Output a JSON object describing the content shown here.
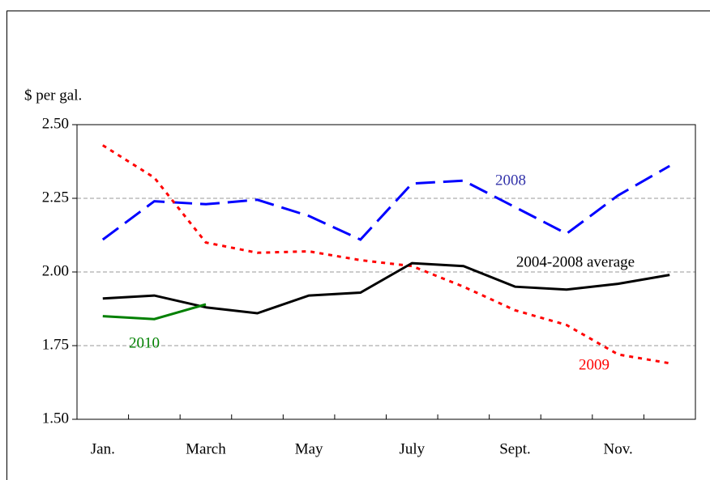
{
  "chart_data": {
    "type": "line",
    "y_label": "$ per gal.",
    "categories": [
      "Jan.",
      null,
      "March",
      null,
      "May",
      null,
      "July",
      null,
      "Sept.",
      null,
      "Nov.",
      null
    ],
    "series": [
      {
        "name": "2008",
        "color": "#0000ff",
        "label_color": "#3333aa",
        "style": "dashed",
        "values": [
          2.11,
          2.24,
          2.23,
          2.245,
          2.19,
          2.11,
          2.3,
          2.31,
          2.22,
          2.13,
          2.26,
          2.36
        ]
      },
      {
        "name": "2009",
        "color": "#ff0000",
        "label_color": "#ff0000",
        "style": "dotted",
        "values": [
          2.43,
          2.32,
          2.1,
          2.065,
          2.07,
          2.04,
          2.02,
          1.95,
          1.87,
          1.82,
          1.72,
          1.69
        ]
      },
      {
        "name": "2004-2008 average",
        "color": "#000000",
        "label_color": "#000000",
        "style": "solid",
        "values": [
          1.91,
          1.92,
          1.88,
          1.86,
          1.92,
          1.93,
          2.03,
          2.02,
          1.95,
          1.94,
          1.96,
          1.99
        ]
      },
      {
        "name": "2010",
        "color": "#008000",
        "label_color": "#008000",
        "style": "solid",
        "values": [
          1.85,
          1.84,
          1.89,
          null,
          null,
          null,
          null,
          null,
          null,
          null,
          null,
          null
        ]
      }
    ],
    "ylim": [
      1.5,
      2.5
    ],
    "yticks": [
      {
        "value": 1.5,
        "label": "1.50"
      },
      {
        "value": 1.75,
        "label": "1.75"
      },
      {
        "value": 2,
        "label": "2.00"
      },
      {
        "value": 2.25,
        "label": "2.25"
      },
      {
        "value": 2.5,
        "label": "2.50"
      }
    ],
    "grid": true
  }
}
